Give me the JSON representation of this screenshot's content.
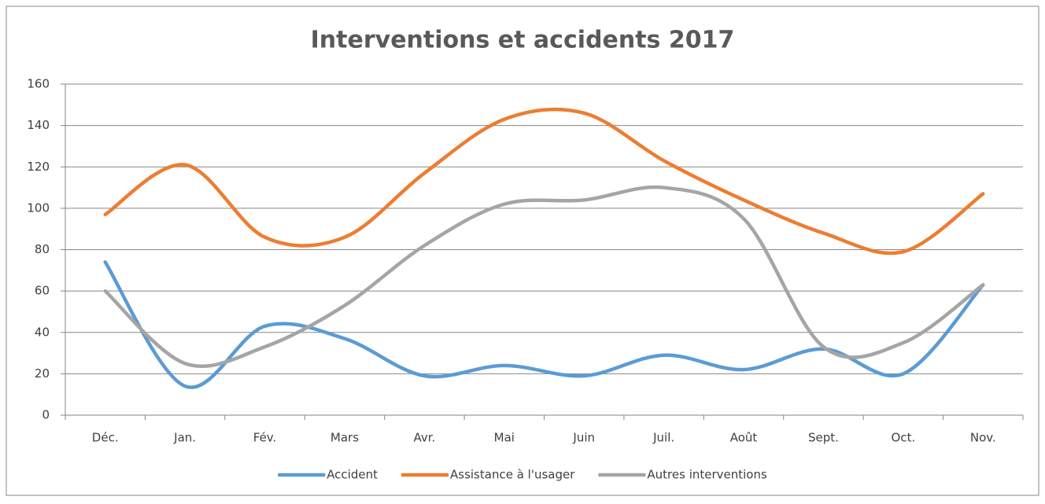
{
  "chart_data": {
    "type": "line",
    "title": "Interventions et accidents 2017",
    "categories": [
      "Déc.",
      "Jan.",
      "Fév.",
      "Mars",
      "Avr.",
      "Mai",
      "Juin",
      "Juil.",
      "Août",
      "Sept.",
      "Oct.",
      "Nov."
    ],
    "series": [
      {
        "name": "Accident",
        "color": "#5b9bd5",
        "values": [
          74,
          14,
          43,
          37,
          19,
          24,
          19,
          29,
          22,
          32,
          20,
          63
        ]
      },
      {
        "name": "Assistance à l'usager",
        "color": "#ed7d31",
        "values": [
          97,
          121,
          86,
          86,
          117,
          143,
          146,
          123,
          104,
          88,
          79,
          107
        ]
      },
      {
        "name": "Autres interventions",
        "color": "#a5a5a5",
        "values": [
          60,
          25,
          33,
          53,
          82,
          102,
          104,
          110,
          95,
          33,
          35,
          63
        ]
      }
    ],
    "ylim": [
      0,
      160
    ],
    "yticks": [
      0,
      20,
      40,
      60,
      80,
      100,
      120,
      140,
      160
    ],
    "grid": true,
    "legend": "bottom",
    "smooth": true
  }
}
